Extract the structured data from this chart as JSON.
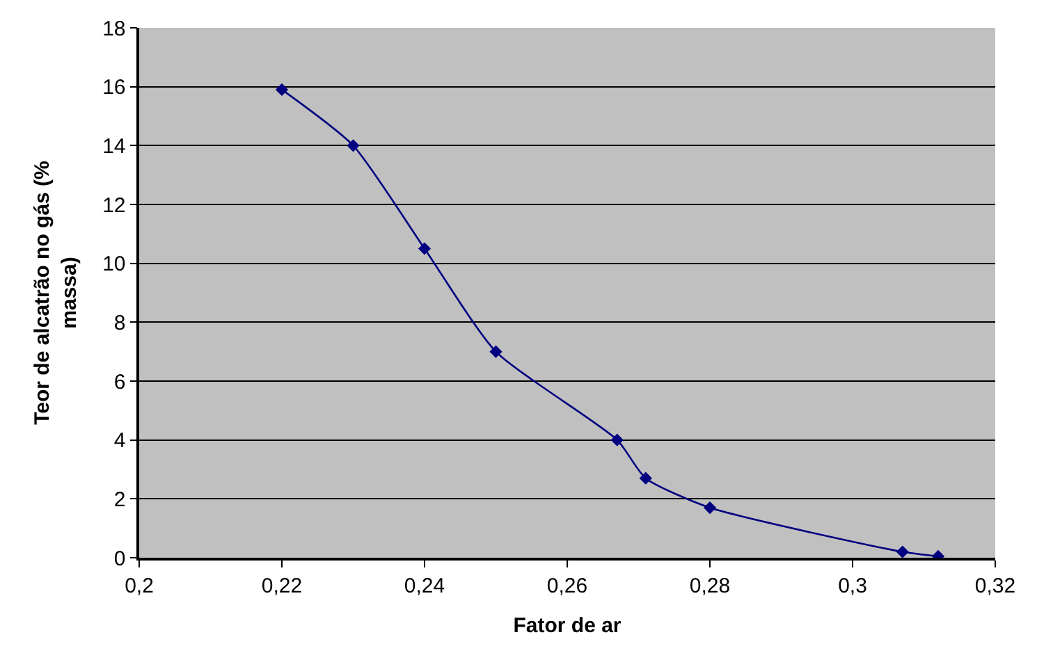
{
  "chart_data": {
    "type": "line",
    "xlabel": "Fator de ar",
    "ylabel": "Teor de alcatrão no gás (%\nmassa)",
    "x": [
      0.22,
      0.23,
      0.24,
      0.25,
      0.267,
      0.271,
      0.28,
      0.307,
      0.312
    ],
    "series": [
      {
        "color": "#000080",
        "values": [
          15.9,
          14,
          10.5,
          7,
          4,
          2.7,
          1.7,
          0.2,
          0.05
        ]
      }
    ],
    "xlim": [
      0.2,
      0.32
    ],
    "xticks": [
      {
        "value": 0.2,
        "label": "0,2"
      },
      {
        "value": 0.22,
        "label": "0,22"
      },
      {
        "value": 0.24,
        "label": "0,24"
      },
      {
        "value": 0.26,
        "label": "0,26"
      },
      {
        "value": 0.28,
        "label": "0,28"
      },
      {
        "value": 0.3,
        "label": "0,3"
      },
      {
        "value": 0.32,
        "label": "0,32"
      }
    ],
    "ylim": [
      0,
      18
    ],
    "yticks": [
      0,
      2,
      4,
      6,
      8,
      10,
      12,
      14,
      16,
      18
    ],
    "grid": "y",
    "legend": false,
    "marker": "diamond",
    "line_style": "solid"
  }
}
